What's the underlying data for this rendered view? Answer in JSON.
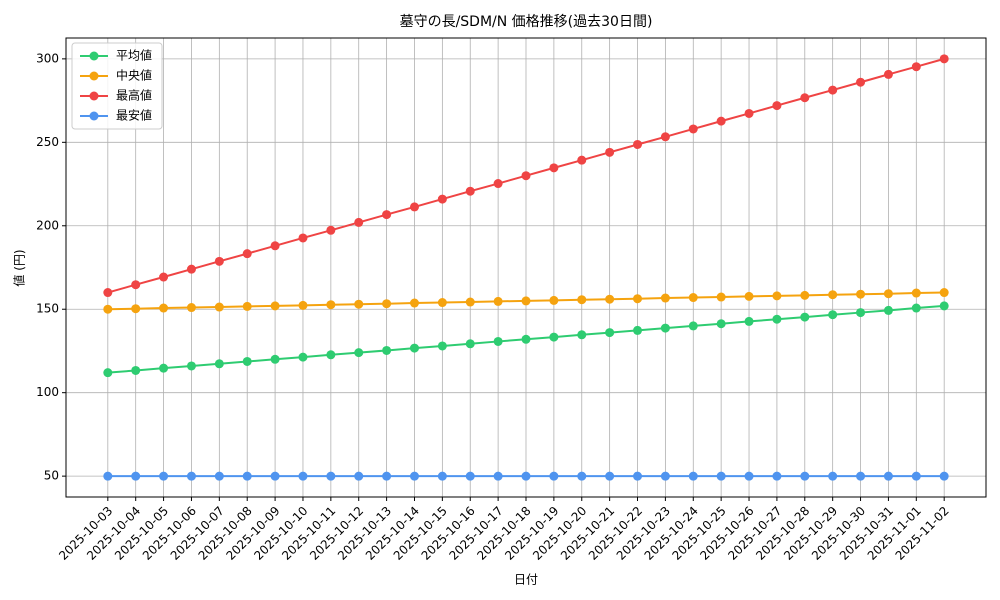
{
  "chart_data": {
    "type": "line",
    "title": "墓守の長/SDM/N 価格推移(過去30日間)",
    "x_label": "日付",
    "y_label": "値 (円)",
    "categories": [
      "2025-10-03",
      "2025-10-04",
      "2025-10-05",
      "2025-10-06",
      "2025-10-07",
      "2025-10-08",
      "2025-10-09",
      "2025-10-10",
      "2025-10-11",
      "2025-10-12",
      "2025-10-13",
      "2025-10-14",
      "2025-10-15",
      "2025-10-16",
      "2025-10-17",
      "2025-10-18",
      "2025-10-19",
      "2025-10-20",
      "2025-10-21",
      "2025-10-22",
      "2025-10-23",
      "2025-10-24",
      "2025-10-25",
      "2025-10-26",
      "2025-10-27",
      "2025-10-28",
      "2025-10-29",
      "2025-10-30",
      "2025-10-31",
      "2025-11-01",
      "2025-11-02"
    ],
    "series": [
      {
        "name": "平均値",
        "color": "#2ecc71",
        "values": [
          112,
          113.3,
          114.7,
          116,
          117.3,
          118.7,
          120,
          121.3,
          122.7,
          124,
          125.3,
          126.7,
          128,
          129.3,
          130.7,
          132,
          133.3,
          134.7,
          136,
          137.3,
          138.7,
          140,
          141.3,
          142.7,
          144,
          145.3,
          146.7,
          148,
          149.3,
          150.7,
          152
        ]
      },
      {
        "name": "中央値",
        "color": "#f5a30f",
        "values": [
          150,
          150.3,
          150.7,
          151,
          151.3,
          151.7,
          152,
          152.3,
          152.7,
          153,
          153.3,
          153.7,
          154,
          154.3,
          154.7,
          155,
          155.3,
          155.7,
          156,
          156.3,
          156.7,
          157,
          157.3,
          157.7,
          158,
          158.3,
          158.7,
          159,
          159.3,
          159.7,
          160
        ]
      },
      {
        "name": "最高値",
        "color": "#ef4444",
        "values": [
          160,
          164.7,
          169.3,
          174,
          178.7,
          183.3,
          188,
          192.7,
          197.3,
          202,
          206.7,
          211.3,
          216,
          220.7,
          225.3,
          230,
          234.7,
          239.3,
          244,
          248.7,
          253.3,
          258,
          262.7,
          267.3,
          272,
          276.7,
          281.3,
          286,
          290.7,
          295.3,
          300
        ]
      },
      {
        "name": "最安値",
        "color": "#4f94ef",
        "values": [
          50,
          50,
          50,
          50,
          50,
          50,
          50,
          50,
          50,
          50,
          50,
          50,
          50,
          50,
          50,
          50,
          50,
          50,
          50,
          50,
          50,
          50,
          50,
          50,
          50,
          50,
          50,
          50,
          50,
          50,
          50
        ]
      }
    ],
    "ylim": [
      37.5,
      312.5
    ],
    "yticks": [
      50,
      100,
      150,
      200,
      250,
      300
    ],
    "grid": true,
    "legend": "upper-left"
  }
}
